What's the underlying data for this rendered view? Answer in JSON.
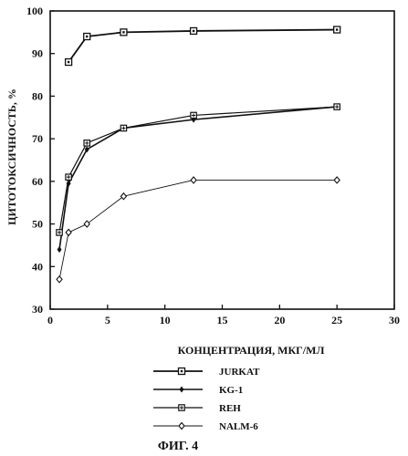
{
  "chart_data": {
    "type": "line",
    "xlabel": "КОНЦЕНТРАЦИЯ, МКГ/МЛ",
    "ylabel": "ЦИТОТОКСИЧНОСТЬ, %",
    "xlim": [
      0,
      30
    ],
    "ylim": [
      30,
      100
    ],
    "xticks": [
      "0",
      "5",
      "10",
      "15",
      "20",
      "25",
      "30"
    ],
    "yticks": [
      "30",
      "40",
      "50",
      "60",
      "70",
      "80",
      "90",
      "100"
    ],
    "grid": false,
    "legend_position": "below",
    "series": [
      {
        "name": "JURKAT",
        "marker": "square",
        "x": [
          1.6,
          3.2,
          6.4,
          12.5,
          25
        ],
        "y": [
          88,
          94,
          95,
          95.3,
          95.6
        ]
      },
      {
        "name": "KG-1",
        "marker": "plus",
        "x": [
          0.8,
          1.6,
          3.2,
          6.4,
          12.5,
          25
        ],
        "y": [
          44,
          59.5,
          67.5,
          72.5,
          74.5,
          77.5
        ]
      },
      {
        "name": "REH",
        "marker": "star",
        "x": [
          0.8,
          1.6,
          3.2,
          6.4,
          12.5,
          25
        ],
        "y": [
          48,
          61,
          69,
          72.5,
          75.5,
          77.5
        ]
      },
      {
        "name": "NALM-6",
        "marker": "diamond",
        "x": [
          0.8,
          1.6,
          3.2,
          6.4,
          12.5,
          25
        ],
        "y": [
          37,
          48,
          50,
          56.5,
          60.3,
          60.3
        ]
      }
    ]
  },
  "caption": "ФИГ. 4"
}
